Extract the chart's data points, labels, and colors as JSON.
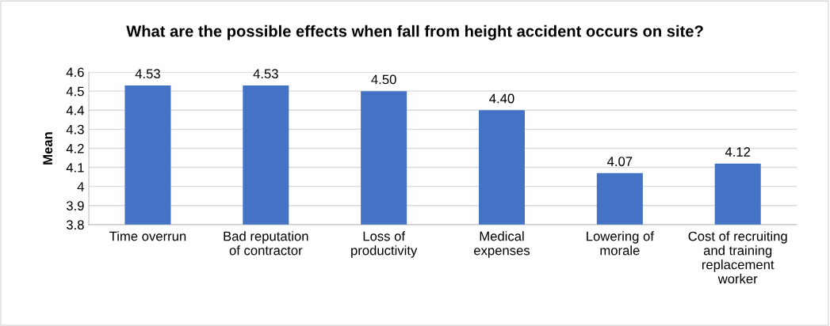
{
  "chart_data": {
    "type": "bar",
    "title": "What are the possible effects when fall from height accident occurs on site?",
    "ylabel": "Mean",
    "categories": [
      "Time overrun",
      "Bad reputation\nof contractor",
      "Loss of\nproductivity",
      "Medical\nexpenses",
      "Lowering of\nmorale",
      "Cost of recruiting\nand training\nreplacement\nworker"
    ],
    "values": [
      4.53,
      4.53,
      4.5,
      4.4,
      4.07,
      4.12
    ],
    "value_labels": [
      "4.53",
      "4.53",
      "4.50",
      "4.40",
      "4.07",
      "4.12"
    ],
    "color": "#4472c4",
    "ylim": [
      3.8,
      4.6
    ],
    "yticks": [
      {
        "value": 3.8,
        "label": "3.8"
      },
      {
        "value": 3.9,
        "label": "3.9"
      },
      4,
      {
        "value": 4.1,
        "label": "4.1"
      },
      {
        "value": 4.2,
        "label": "4.2"
      },
      {
        "value": 4.3,
        "label": "4.3"
      },
      {
        "value": 4.4,
        "label": "4.4"
      },
      {
        "value": 4.5,
        "label": "4.5"
      },
      {
        "value": 4.6,
        "label": "4.6"
      }
    ],
    "grid": "y"
  }
}
